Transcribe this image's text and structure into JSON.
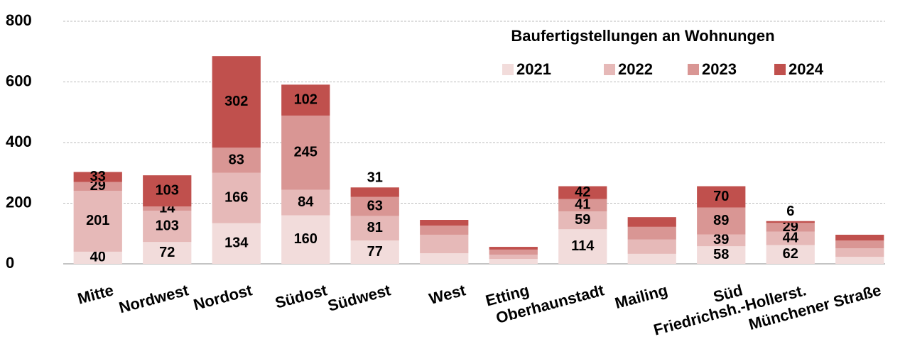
{
  "chart_data": {
    "type": "stacked_bar",
    "legend_title": "Baufertigstellungen an Wohnungen",
    "legend_position": "upper right",
    "categories": [
      "Mitte",
      "Nordwest",
      "Nordost",
      "Südost",
      "Südwest",
      "West",
      "Etting",
      "Oberhaunstadt",
      "Mailing",
      "Süd",
      "Friedrichsh.-Hollerst.",
      "Münchener Straße"
    ],
    "series": [
      {
        "name": "2021",
        "color": "#f2dcdb",
        "values": [
          40,
          72,
          134,
          160,
          77,
          35,
          16,
          114,
          33,
          58,
          62,
          23
        ],
        "value_labels": [
          "40",
          "72",
          "134",
          "160",
          "77",
          null,
          null,
          "114",
          null,
          "58",
          "62",
          null
        ]
      },
      {
        "name": "2022",
        "color": "#e6b9b8",
        "values": [
          201,
          103,
          166,
          84,
          81,
          61,
          14,
          59,
          47,
          39,
          44,
          28
        ],
        "value_labels": [
          "201",
          "103",
          "166",
          "84",
          "81",
          null,
          null,
          "59",
          null,
          "39",
          "44",
          null
        ]
      },
      {
        "name": "2023",
        "color": "#d99694",
        "values": [
          29,
          14,
          83,
          245,
          63,
          30,
          17,
          41,
          42,
          89,
          29,
          26
        ],
        "value_labels": [
          "29",
          "14",
          "83",
          "245",
          "63",
          null,
          null,
          "41",
          null,
          "89",
          "29",
          null
        ]
      },
      {
        "name": "2024",
        "color": "#c0504d",
        "values": [
          33,
          103,
          302,
          102,
          31,
          19,
          9,
          42,
          32,
          70,
          6,
          19
        ],
        "value_labels": [
          "33",
          "103",
          "302",
          "102",
          "31",
          null,
          null,
          "42",
          null,
          "70",
          "6",
          null
        ]
      }
    ],
    "ylim": [
      0,
      800
    ],
    "yticks": [
      0,
      200,
      400,
      600,
      800
    ],
    "grid": true
  }
}
